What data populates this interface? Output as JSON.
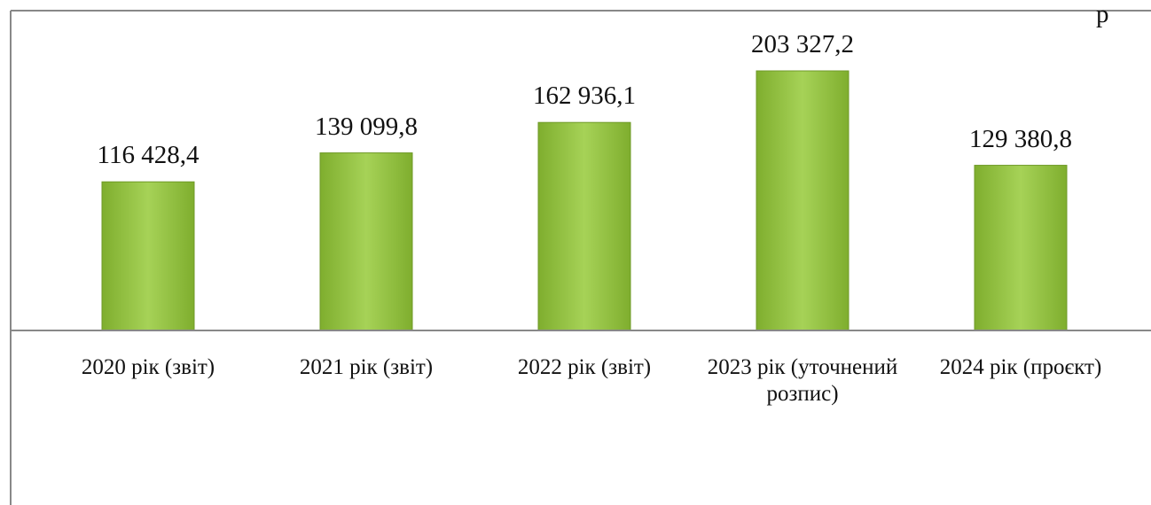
{
  "chart_data": {
    "type": "bar",
    "corner_text": "р",
    "categories": [
      "2020 рік (звіт)",
      "2021 рік (звіт)",
      "2022 рік (звіт)",
      "2023 рік (уточнений розпис)",
      "2024 рік (проєкт)"
    ],
    "values": [
      116428.4,
      139099.8,
      162936.1,
      203327.2,
      129380.8
    ],
    "value_labels": [
      "116 428,4",
      "139 099,8",
      "162 936,1",
      "203 327,2",
      "129 380,8"
    ],
    "color": "#92c23c"
  }
}
